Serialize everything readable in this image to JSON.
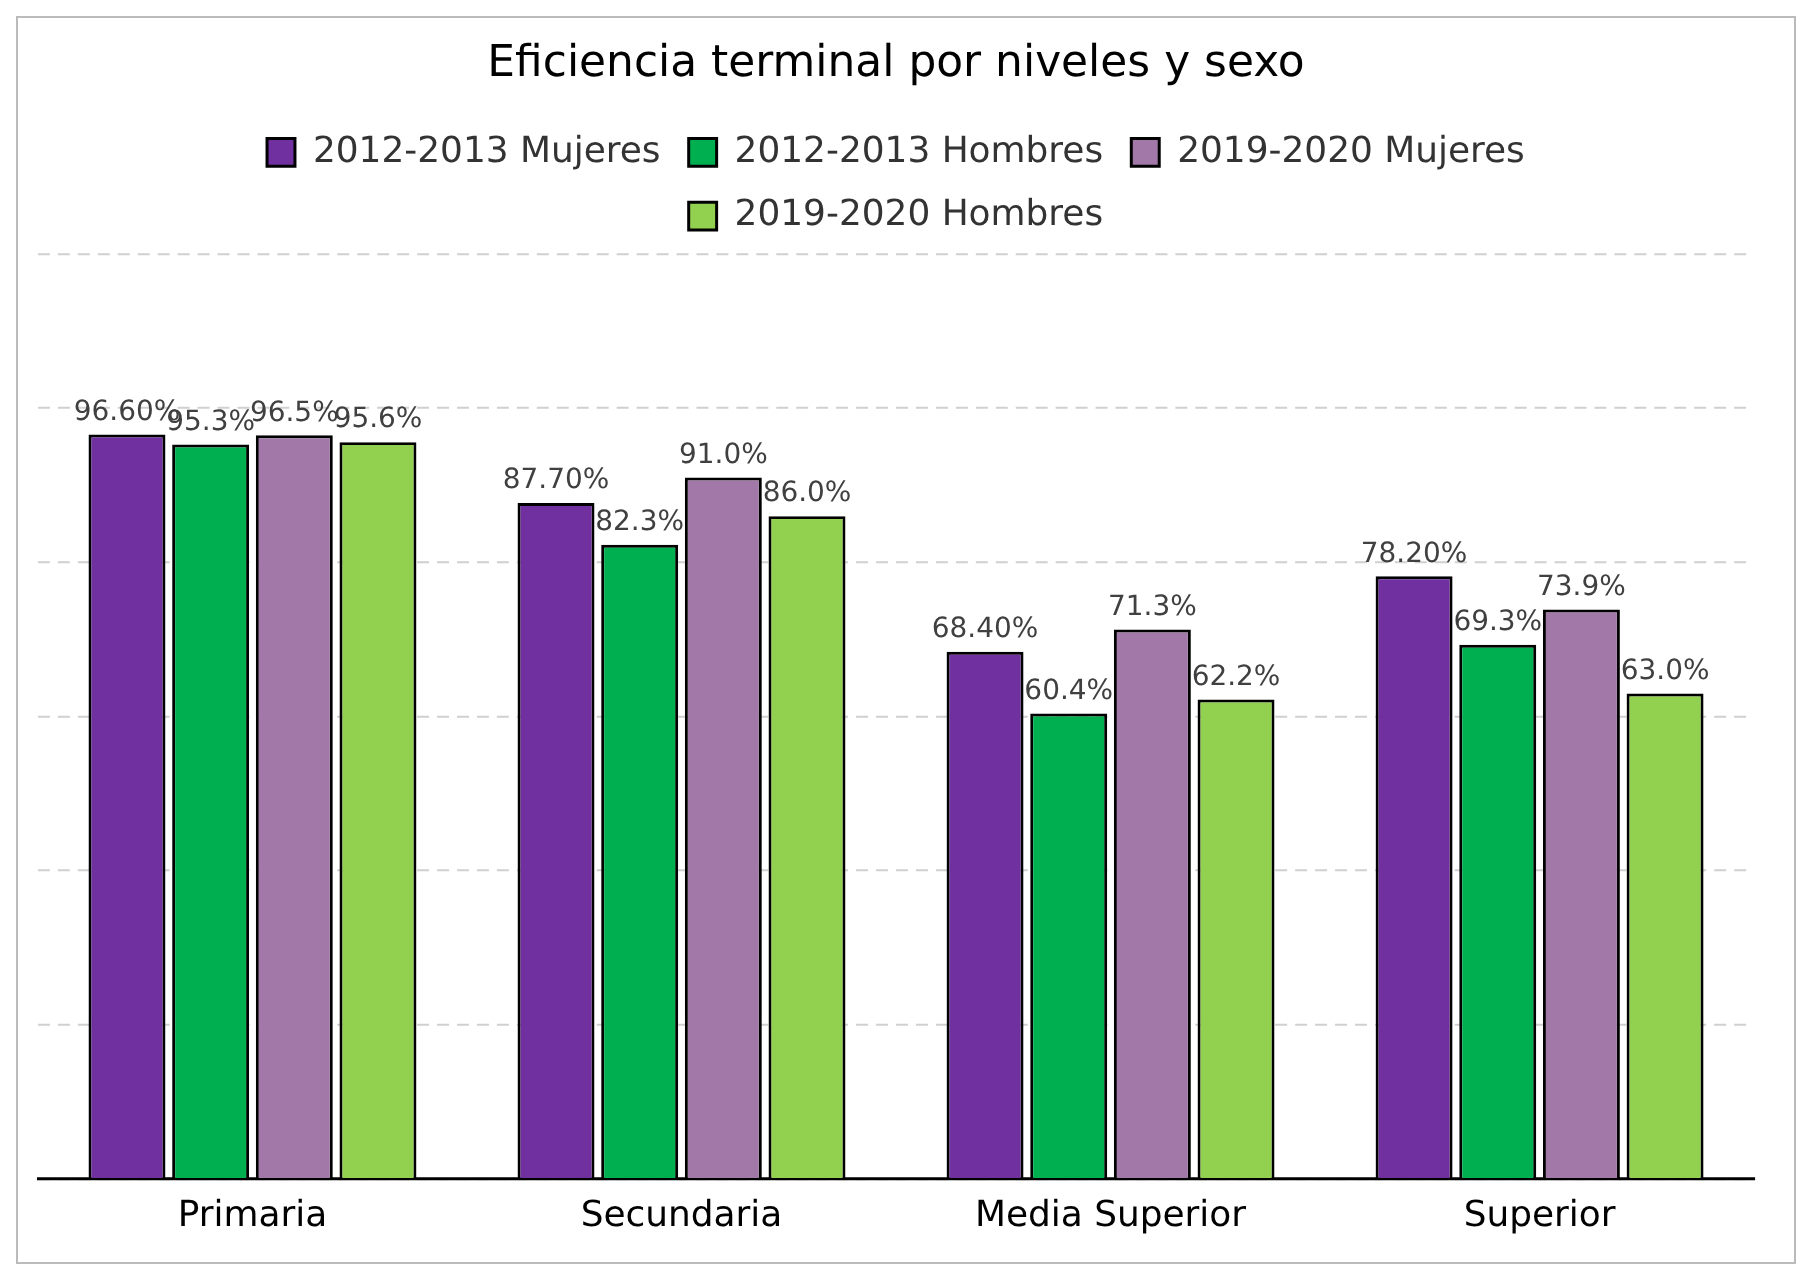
{
  "chart_data": {
    "type": "bar",
    "title": "Eficiencia terminal por niveles y sexo",
    "categories": [
      "Primaria",
      "Secundaria",
      "Media Superior",
      "Superior"
    ],
    "series": [
      {
        "name": "2012-2013 Mujeres",
        "color": "#7030a0",
        "values": [
          96.6,
          87.7,
          68.4,
          78.2
        ],
        "value_labels": [
          "96.60%",
          "87.70%",
          "68.40%",
          "78.20%"
        ]
      },
      {
        "name": "2012-2013 Hombres",
        "color": "#00b050",
        "values": [
          95.3,
          82.3,
          60.4,
          69.3
        ],
        "value_labels": [
          "95.3%",
          "82.3%",
          "60.4%",
          "69.3%"
        ]
      },
      {
        "name": "2019-2020 Mujeres",
        "color": "#a178a8",
        "values": [
          96.5,
          91.0,
          71.3,
          73.9
        ],
        "value_labels": [
          "96.5%",
          "91.0%",
          "71.3%",
          "73.9%"
        ]
      },
      {
        "name": "2019-2020 Hombres",
        "color": "#92d050",
        "values": [
          95.6,
          86.0,
          62.2,
          63.0
        ],
        "value_labels": [
          "95.6%",
          "86.0%",
          "62.2%",
          "63.0%"
        ]
      }
    ],
    "ylim": [
      0,
      120
    ],
    "yticks": [
      {
        "value": 0,
        "label": null
      },
      {
        "value": 20,
        "label": null
      },
      {
        "value": 40,
        "label": null
      },
      {
        "value": 60,
        "label": null
      },
      {
        "value": 80,
        "label": null
      },
      {
        "value": 100,
        "label": null
      },
      {
        "value": 120,
        "label": null
      }
    ],
    "grid": "y",
    "legend": "top",
    "tick_labels": "x"
  }
}
